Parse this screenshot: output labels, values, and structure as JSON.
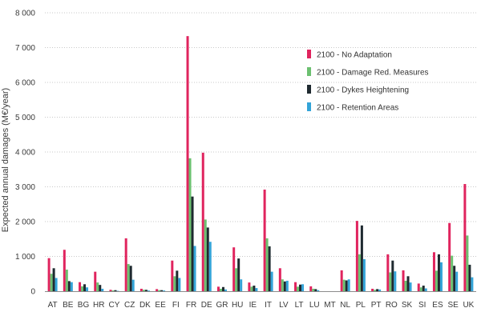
{
  "chart_data": {
    "type": "bar",
    "title": "",
    "xlabel": "",
    "ylabel": "Expected annual damages (M€/year)",
    "ylim": [
      0,
      8000
    ],
    "yticks": [
      0,
      1000,
      2000,
      3000,
      4000,
      5000,
      6000,
      7000,
      8000
    ],
    "ytick_labels": [
      "0",
      "1 000",
      "2 000",
      "3 000",
      "4 000",
      "5 000",
      "6 000",
      "7 000",
      "8 000"
    ],
    "grid": true,
    "legend_position": "top-right",
    "categories": [
      "AT",
      "BE",
      "BG",
      "HR",
      "CY",
      "CZ",
      "DK",
      "EE",
      "FI",
      "FR",
      "DE",
      "GR",
      "HU",
      "IE",
      "IT",
      "LV",
      "LT",
      "LU",
      "MT",
      "NL",
      "PL",
      "PT",
      "RO",
      "SK",
      "SI",
      "ES",
      "SE",
      "UK"
    ],
    "series": [
      {
        "name": "2100 - No Adaptation",
        "color": "#e0245e",
        "values": [
          950,
          1190,
          260,
          560,
          40,
          1520,
          70,
          60,
          880,
          7330,
          3980,
          130,
          1260,
          250,
          2920,
          660,
          260,
          140,
          0,
          600,
          2020,
          70,
          1060,
          600,
          220,
          1120,
          1960,
          3080
        ]
      },
      {
        "name": "2100 - Damage Red. Measures",
        "color": "#6cc070",
        "values": [
          500,
          620,
          140,
          250,
          20,
          780,
          40,
          30,
          430,
          3820,
          2060,
          70,
          660,
          130,
          1520,
          340,
          130,
          70,
          0,
          330,
          1060,
          40,
          540,
          300,
          110,
          590,
          1020,
          1600
        ]
      },
      {
        "name": "2100 - Dykes Heightening",
        "color": "#1f2a30",
        "values": [
          660,
          290,
          200,
          180,
          30,
          730,
          40,
          30,
          590,
          2720,
          1830,
          120,
          940,
          160,
          1290,
          280,
          190,
          60,
          0,
          310,
          1890,
          60,
          880,
          430,
          160,
          1060,
          730,
          760
        ]
      },
      {
        "name": "2100 - Retention Areas",
        "color": "#33a4d8",
        "values": [
          380,
          260,
          110,
          70,
          10,
          330,
          20,
          20,
          380,
          1300,
          1420,
          50,
          340,
          90,
          560,
          300,
          200,
          30,
          0,
          340,
          920,
          50,
          570,
          250,
          80,
          830,
          560,
          400
        ]
      }
    ]
  }
}
